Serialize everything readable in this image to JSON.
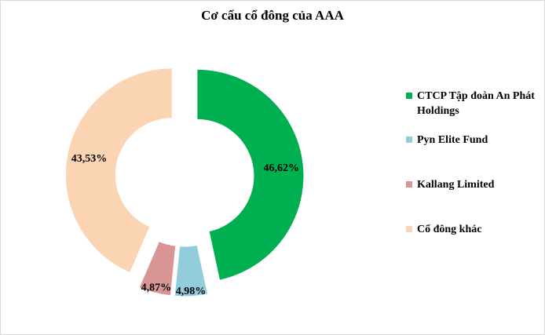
{
  "chart_data": {
    "type": "pie",
    "variant": "exploded-donut",
    "title": "Cơ cấu cổ đông của AAA",
    "legend_position": "right",
    "slices": [
      {
        "name": "CTCP Tập đoàn An Phát Holdings",
        "value": 46.62,
        "label": "46,62%",
        "color": "#00b050"
      },
      {
        "name": "Pyn Elite Fund",
        "value": 4.98,
        "label": "4,98%",
        "color": "#92cddc"
      },
      {
        "name": "Kallang Limited",
        "value": 4.87,
        "label": "4,87%",
        "color": "#d99594"
      },
      {
        "name": "Cổ đông khác",
        "value": 43.53,
        "label": "43,53%",
        "color": "#fbd4b4"
      }
    ]
  }
}
